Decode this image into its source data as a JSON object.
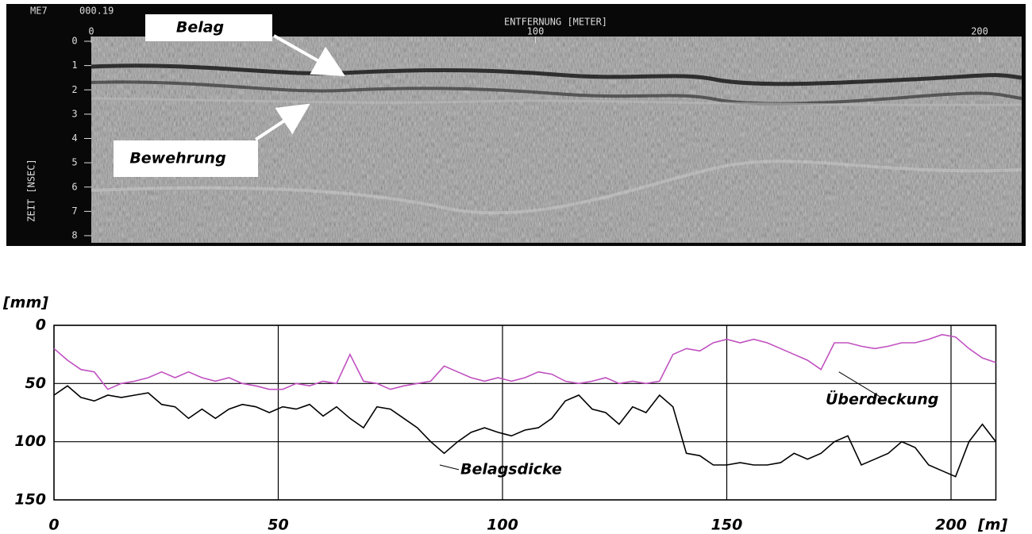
{
  "radargram": {
    "header": "ME7",
    "file_text": "000.19",
    "x_axis_label": "ENTFERNUNG [METER]",
    "xlim": [
      0,
      210
    ],
    "xticks": [
      0,
      100,
      200
    ],
    "y_axis_label": "ZEIT [NSEC]",
    "ylim": [
      0,
      8
    ],
    "yticks": [
      0,
      1,
      2,
      3,
      4,
      5,
      6,
      7,
      8
    ],
    "annotations": [
      "Belag",
      "Bewehrung"
    ]
  },
  "chart_data": {
    "type": "line",
    "y_axis_label": "[mm]",
    "x_axis_label": "[m]",
    "x": [
      0,
      3,
      6,
      9,
      12,
      15,
      18,
      21,
      24,
      27,
      30,
      33,
      36,
      39,
      42,
      45,
      48,
      51,
      54,
      57,
      60,
      63,
      66,
      69,
      72,
      75,
      78,
      81,
      84,
      87,
      90,
      93,
      96,
      99,
      102,
      105,
      108,
      111,
      114,
      117,
      120,
      123,
      126,
      129,
      132,
      135,
      138,
      141,
      144,
      147,
      150,
      153,
      156,
      159,
      162,
      165,
      168,
      171,
      174,
      177,
      180,
      183,
      186,
      189,
      192,
      195,
      198,
      201,
      204,
      207,
      210
    ],
    "series": [
      {
        "name": "Belagsdicke",
        "color": "#000000",
        "values": [
          60,
          52,
          62,
          65,
          60,
          62,
          60,
          58,
          68,
          70,
          80,
          72,
          80,
          72,
          68,
          70,
          75,
          70,
          72,
          68,
          78,
          70,
          80,
          88,
          70,
          72,
          80,
          88,
          100,
          110,
          100,
          92,
          88,
          92,
          95,
          90,
          88,
          80,
          65,
          60,
          72,
          75,
          85,
          70,
          75,
          60,
          70,
          110,
          112,
          120,
          120,
          118,
          120,
          120,
          118,
          110,
          115,
          110,
          100,
          95,
          120,
          115,
          110,
          100,
          105,
          120,
          125,
          130,
          100,
          85,
          100
        ]
      },
      {
        "name": "Überdeckung",
        "color": "#c050c0",
        "values": [
          20,
          30,
          38,
          40,
          55,
          50,
          48,
          45,
          40,
          45,
          40,
          45,
          48,
          45,
          50,
          52,
          55,
          55,
          50,
          52,
          48,
          50,
          25,
          48,
          50,
          55,
          52,
          50,
          48,
          35,
          40,
          45,
          48,
          45,
          48,
          45,
          40,
          42,
          48,
          50,
          48,
          45,
          50,
          48,
          50,
          48,
          25,
          20,
          22,
          15,
          12,
          15,
          12,
          15,
          20,
          25,
          30,
          38,
          15,
          15,
          18,
          20,
          18,
          15,
          15,
          12,
          8,
          10,
          20,
          28,
          32
        ]
      }
    ],
    "xlim": [
      0,
      210
    ],
    "xticks": [
      0,
      50,
      100,
      150,
      200
    ],
    "ylim": [
      150,
      0
    ],
    "yticks": [
      0,
      50,
      100,
      150
    ],
    "grid": true
  }
}
